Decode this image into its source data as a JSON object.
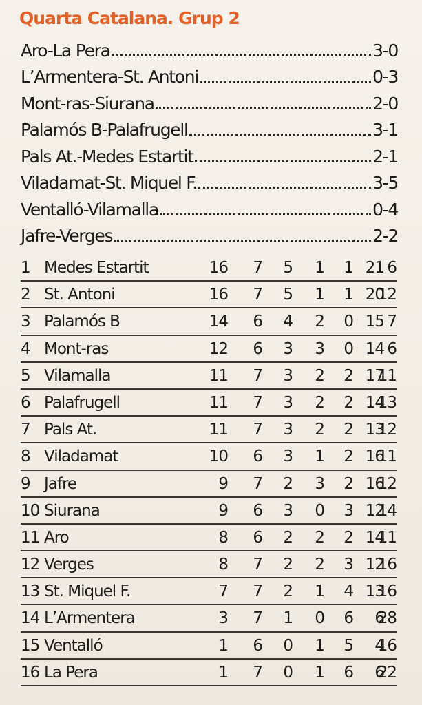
{
  "title": "Quarta Catalana. Grup 2",
  "results": [
    {
      "match": "Aro-La Pera",
      "score": "3-0"
    },
    {
      "match": "L’Armentera-St. Antoni",
      "score": "0-3"
    },
    {
      "match": "Mont-ras-Siurana",
      "score": "2-0"
    },
    {
      "match": "Palamós B-Palafrugell",
      "score": "3-1"
    },
    {
      "match": "Pals At.-Medes Estartit",
      "score": "2-1"
    },
    {
      "match": "Viladamat-St. Miquel F.",
      "score": "3-5"
    },
    {
      "match": "Ventalló-Vilamalla",
      "score": "0-4"
    },
    {
      "match": "Jafre-Verges",
      "score": "2-2"
    }
  ],
  "standings": [
    {
      "pos": "1",
      "team": "Medes Estartit",
      "pts": "16",
      "pj": "7",
      "w": "5",
      "d": "1",
      "l": "1",
      "gf": "21",
      "ga": "6"
    },
    {
      "pos": "2",
      "team": "St. Antoni",
      "pts": "16",
      "pj": "7",
      "w": "5",
      "d": "1",
      "l": "1",
      "gf": "20",
      "ga": "12"
    },
    {
      "pos": "3",
      "team": "Palamós B",
      "pts": "14",
      "pj": "6",
      "w": "4",
      "d": "2",
      "l": "0",
      "gf": "15",
      "ga": "7"
    },
    {
      "pos": "4",
      "team": "Mont-ras",
      "pts": "12",
      "pj": "6",
      "w": "3",
      "d": "3",
      "l": "0",
      "gf": "14",
      "ga": "6"
    },
    {
      "pos": "5",
      "team": "Vilamalla",
      "pts": "11",
      "pj": "7",
      "w": "3",
      "d": "2",
      "l": "2",
      "gf": "17",
      "ga": "11"
    },
    {
      "pos": "6",
      "team": "Palafrugell",
      "pts": "11",
      "pj": "7",
      "w": "3",
      "d": "2",
      "l": "2",
      "gf": "14",
      "ga": "13"
    },
    {
      "pos": "7",
      "team": "Pals At.",
      "pts": "11",
      "pj": "7",
      "w": "3",
      "d": "2",
      "l": "2",
      "gf": "13",
      "ga": "12"
    },
    {
      "pos": "8",
      "team": "Viladamat",
      "pts": "10",
      "pj": "6",
      "w": "3",
      "d": "1",
      "l": "2",
      "gf": "16",
      "ga": "11"
    },
    {
      "pos": "9",
      "team": "Jafre",
      "pts": "9",
      "pj": "7",
      "w": "2",
      "d": "3",
      "l": "2",
      "gf": "16",
      "ga": "12"
    },
    {
      "pos": "10",
      "team": "Siurana",
      "pts": "9",
      "pj": "6",
      "w": "3",
      "d": "0",
      "l": "3",
      "gf": "12",
      "ga": "14"
    },
    {
      "pos": "11",
      "team": "Aro",
      "pts": "8",
      "pj": "6",
      "w": "2",
      "d": "2",
      "l": "2",
      "gf": "14",
      "ga": "11"
    },
    {
      "pos": "12",
      "team": "Verges",
      "pts": "8",
      "pj": "7",
      "w": "2",
      "d": "2",
      "l": "3",
      "gf": "12",
      "ga": "16"
    },
    {
      "pos": "13",
      "team": "St. Miquel F.",
      "pts": "7",
      "pj": "7",
      "w": "2",
      "d": "1",
      "l": "4",
      "gf": "13",
      "ga": "16"
    },
    {
      "pos": "14",
      "team": "L’Armentera",
      "pts": "3",
      "pj": "7",
      "w": "1",
      "d": "0",
      "l": "6",
      "gf": "6",
      "ga": "28"
    },
    {
      "pos": "15",
      "team": "Ventalló",
      "pts": "1",
      "pj": "6",
      "w": "0",
      "d": "1",
      "l": "5",
      "gf": "4",
      "ga": "16"
    },
    {
      "pos": "16",
      "team": "La Pera",
      "pts": "1",
      "pj": "7",
      "w": "0",
      "d": "1",
      "l": "6",
      "gf": "6",
      "ga": "22"
    }
  ],
  "colors": {
    "title": "#e0622a",
    "text": "#1d1b1a",
    "paper": "#f3ede4"
  }
}
